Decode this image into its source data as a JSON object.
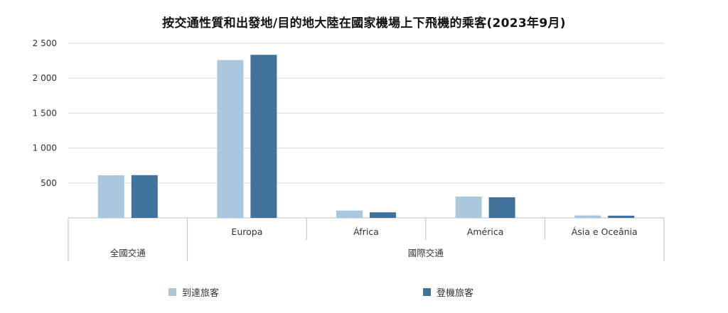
{
  "chart_data": {
    "type": "bar",
    "title": "按交通性質和出發地/目的地大陸在國家機場上下飛機的乘客(2023年9月)",
    "categories": [
      "",
      "Europa",
      "África",
      "América",
      "Ásia e Oceânia"
    ],
    "groups": [
      {
        "label": "全國交通",
        "span": [
          0,
          0
        ]
      },
      {
        "label": "國際交通",
        "span": [
          1,
          4
        ]
      }
    ],
    "series": [
      {
        "name": "到達旅客",
        "color": "#a9c8de",
        "values": [
          610,
          2260,
          105,
          305,
          35
        ]
      },
      {
        "name": "登機旅客",
        "color": "#3f739c",
        "values": [
          612,
          2335,
          80,
          295,
          32
        ]
      }
    ],
    "yticks": [
      500,
      1000,
      1500,
      2000,
      2500
    ],
    "ytick_labels": [
      "500",
      "1 000",
      "1 500",
      "2 000",
      "2 500"
    ],
    "ylim": [
      0,
      2500
    ],
    "grid": true,
    "legend_position": "bottom"
  }
}
